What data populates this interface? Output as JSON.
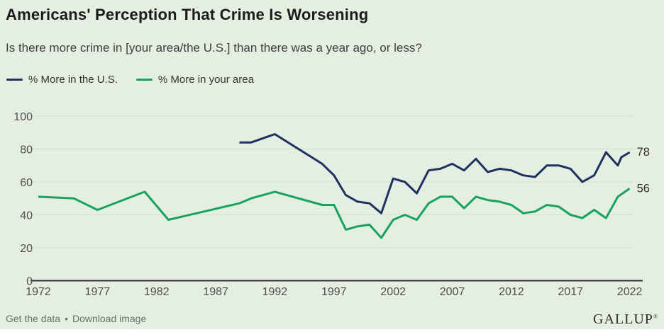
{
  "header": {
    "title": "Americans' Perception That Crime Is Worsening",
    "subtitle": "Is there more crime in [your area/the U.S.] than there was a year ago, or less?"
  },
  "footer": {
    "get_data_label": "Get the data",
    "separator": "•",
    "download_label": "Download image",
    "brand": "GALLUP",
    "brand_mark": "®"
  },
  "chart_data": {
    "type": "line",
    "title": "Americans' Perception That Crime Is Worsening",
    "subtitle": "Is there more crime in [your area/the U.S.] than there was a year ago, or less?",
    "legend_position": "top-left",
    "x_axis": {
      "ticks": [
        1972,
        1977,
        1982,
        1987,
        1992,
        1997,
        2002,
        2007,
        2012,
        2017,
        2022
      ],
      "range": [
        1971,
        2023
      ]
    },
    "y_axis": {
      "ticks": [
        0,
        20,
        40,
        60,
        80,
        100
      ],
      "range": [
        0,
        100
      ],
      "grid": true
    },
    "colors": {
      "background": "#e4efe1",
      "gridline": "#d7decf",
      "axis": "#2e2e2e",
      "tick_text": "#4f4f4f",
      "end_label_text": "#333333"
    },
    "series": [
      {
        "name": "% More in the U.S.",
        "color": "#1f3161",
        "end_label": "78",
        "points": [
          [
            1989,
            84
          ],
          [
            1990,
            84
          ],
          [
            1992,
            89
          ],
          [
            1996,
            71
          ],
          [
            1997,
            64
          ],
          [
            1998,
            52
          ],
          [
            1999,
            48
          ],
          [
            2000,
            47
          ],
          [
            2001,
            41
          ],
          [
            2002,
            62
          ],
          [
            2003,
            60
          ],
          [
            2004,
            53
          ],
          [
            2005,
            67
          ],
          [
            2006,
            68
          ],
          [
            2007,
            71
          ],
          [
            2008,
            67
          ],
          [
            2009,
            74
          ],
          [
            2010,
            66
          ],
          [
            2011,
            68
          ],
          [
            2012,
            67
          ],
          [
            2013,
            64
          ],
          [
            2014,
            63
          ],
          [
            2015,
            70
          ],
          [
            2016,
            70
          ],
          [
            2017,
            68
          ],
          [
            2018,
            60
          ],
          [
            2019,
            64
          ],
          [
            2020,
            78
          ],
          [
            2021,
            70
          ],
          [
            2021.3,
            75
          ],
          [
            2022,
            78
          ]
        ]
      },
      {
        "name": "% More in your area",
        "color": "#17a35e",
        "end_label": "56",
        "points": [
          [
            1972,
            51
          ],
          [
            1975,
            50
          ],
          [
            1977,
            43
          ],
          [
            1981,
            54
          ],
          [
            1983,
            37
          ],
          [
            1989,
            47
          ],
          [
            1990,
            50
          ],
          [
            1992,
            54
          ],
          [
            1996,
            46
          ],
          [
            1997,
            46
          ],
          [
            1998,
            31
          ],
          [
            1999,
            33
          ],
          [
            2000,
            34
          ],
          [
            2001,
            26
          ],
          [
            2002,
            37
          ],
          [
            2003,
            40
          ],
          [
            2004,
            37
          ],
          [
            2005,
            47
          ],
          [
            2006,
            51
          ],
          [
            2007,
            51
          ],
          [
            2008,
            44
          ],
          [
            2009,
            51
          ],
          [
            2010,
            49
          ],
          [
            2011,
            48
          ],
          [
            2012,
            46
          ],
          [
            2013,
            41
          ],
          [
            2014,
            42
          ],
          [
            2015,
            46
          ],
          [
            2016,
            45
          ],
          [
            2017,
            40
          ],
          [
            2018,
            38
          ],
          [
            2019,
            43
          ],
          [
            2020,
            38
          ],
          [
            2021,
            51
          ],
          [
            2022,
            56
          ]
        ]
      }
    ]
  }
}
